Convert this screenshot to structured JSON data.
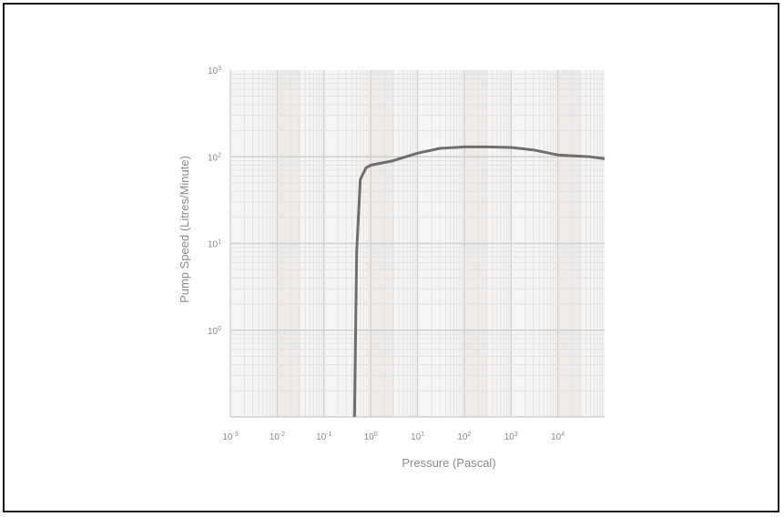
{
  "chart_data": {
    "type": "line",
    "title": "",
    "xlabel": "Pressure (Pascal)",
    "ylabel": "Pump Speed (Litres/Minute)",
    "x_scale": "log",
    "y_scale": "log",
    "xlim": [
      0.001,
      100000
    ],
    "ylim": [
      0.1,
      1000
    ],
    "x_ticks": [
      {
        "value": 0.001,
        "base": "10",
        "exp": "-3"
      },
      {
        "value": 0.01,
        "base": "10",
        "exp": "-2"
      },
      {
        "value": 0.1,
        "base": "10",
        "exp": "-1"
      },
      {
        "value": 1,
        "base": "10",
        "exp": "0"
      },
      {
        "value": 10,
        "base": "10",
        "exp": "1"
      },
      {
        "value": 100,
        "base": "10",
        "exp": "2"
      },
      {
        "value": 1000,
        "base": "10",
        "exp": "3"
      },
      {
        "value": 10000,
        "base": "10",
        "exp": "4"
      }
    ],
    "y_ticks": [
      {
        "value": 1,
        "base": "10",
        "exp": "0"
      },
      {
        "value": 10,
        "base": "10",
        "exp": "1"
      },
      {
        "value": 100,
        "base": "10",
        "exp": "2"
      },
      {
        "value": 1000,
        "base": "10",
        "exp": "3"
      }
    ],
    "grid": true,
    "legend": "none",
    "series": [
      {
        "color": "#6e6e6e",
        "points": [
          [
            0.45,
            0.1
          ],
          [
            0.5,
            8
          ],
          [
            0.6,
            55
          ],
          [
            0.8,
            75
          ],
          [
            1.0,
            80
          ],
          [
            3,
            90
          ],
          [
            10,
            110
          ],
          [
            30,
            125
          ],
          [
            100,
            130
          ],
          [
            300,
            130
          ],
          [
            1000,
            128
          ],
          [
            3000,
            120
          ],
          [
            10000,
            105
          ],
          [
            50000,
            100
          ],
          [
            100000,
            95
          ]
        ]
      }
    ],
    "colors": {
      "frame": "#1a1a1a",
      "grid_major": "#cfcfcf",
      "grid_minor": "#e2e2e2",
      "band": "#e6e0de",
      "text": "#8a8a8a"
    }
  }
}
